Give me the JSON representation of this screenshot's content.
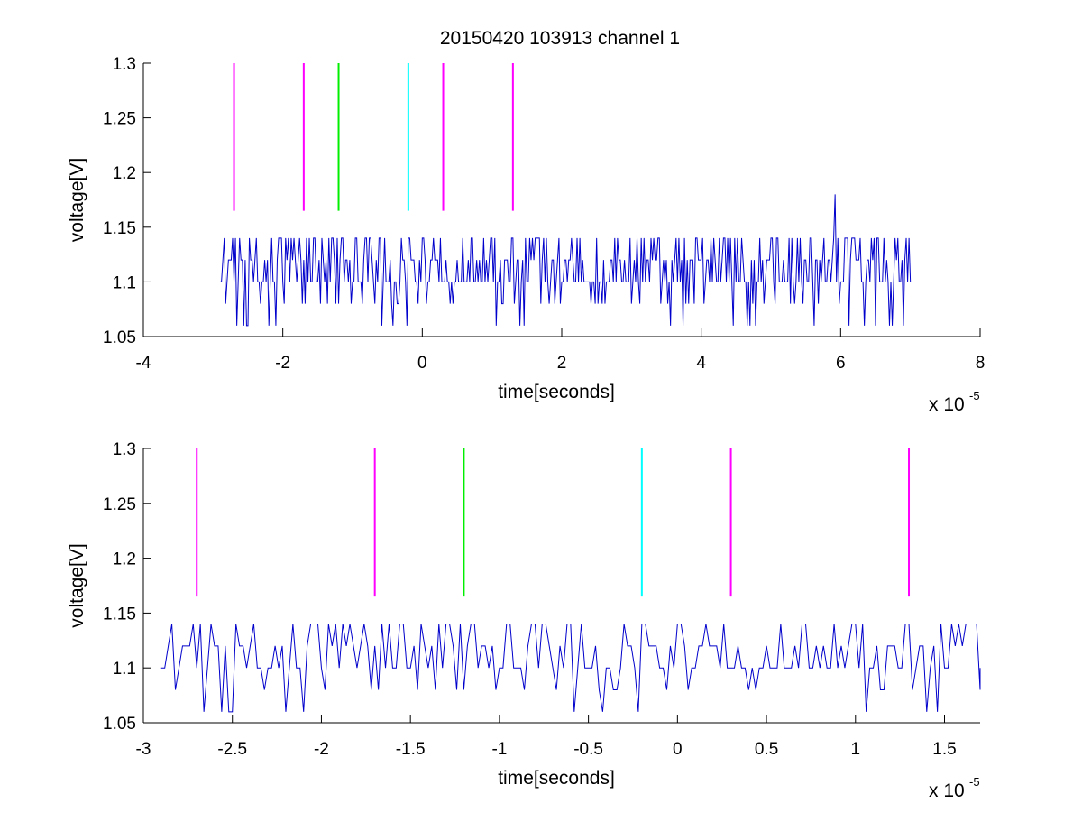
{
  "figure": {
    "title": "20150420 103913 channel 1"
  },
  "colors": {
    "signal": "#0000cc",
    "marker_magenta": "#ff00ff",
    "marker_green": "#00ee00",
    "marker_cyan": "#00ffff",
    "axes": "#000000"
  },
  "chart_data": [
    {
      "type": "line",
      "title": "20150420 103913 channel 1",
      "xlabel": "time[seconds]",
      "ylabel": "voltage[V]",
      "x_exponent": {
        "base": "x 10",
        "power": "-5"
      },
      "xlim": [
        -4,
        8
      ],
      "ylim": [
        1.05,
        1.3
      ],
      "x_ticks": [
        -4,
        -2,
        0,
        2,
        4,
        6,
        8
      ],
      "x_tick_labels": [
        "-4",
        "-2",
        "0",
        "2",
        "4",
        "6",
        "8"
      ],
      "y_ticks": [
        1.05,
        1.1,
        1.15,
        1.2,
        1.25,
        1.3
      ],
      "y_tick_labels": [
        "1.05",
        "1.1",
        "1.15",
        "1.2",
        "1.25",
        "1.3"
      ],
      "grid": false,
      "signal": {
        "x_start": -2.9,
        "x_end": 7.0,
        "step": 0.02,
        "levels": [
          1.06,
          1.08,
          1.1,
          1.12,
          1.14
        ],
        "baseline": 1.1,
        "spike": {
          "x": 5.92,
          "y": 1.18
        }
      },
      "markers": [
        {
          "x": -2.7,
          "y_from": 1.165,
          "y_to": 1.3,
          "color": "magenta"
        },
        {
          "x": -1.7,
          "y_from": 1.165,
          "y_to": 1.3,
          "color": "magenta"
        },
        {
          "x": -1.2,
          "y_from": 1.165,
          "y_to": 1.3,
          "color": "green"
        },
        {
          "x": -0.2,
          "y_from": 1.165,
          "y_to": 1.3,
          "color": "cyan"
        },
        {
          "x": 0.3,
          "y_from": 1.165,
          "y_to": 1.3,
          "color": "magenta"
        },
        {
          "x": 1.3,
          "y_from": 1.165,
          "y_to": 1.3,
          "color": "magenta"
        }
      ]
    },
    {
      "type": "line",
      "title": "",
      "xlabel": "time[seconds]",
      "ylabel": "voltage[V]",
      "x_exponent": {
        "base": "x 10",
        "power": "-5"
      },
      "xlim": [
        -3.0,
        1.7
      ],
      "ylim": [
        1.05,
        1.3
      ],
      "x_ticks": [
        -3,
        -2.5,
        -2,
        -1.5,
        -1,
        -0.5,
        0,
        0.5,
        1,
        1.5
      ],
      "x_tick_labels": [
        "-3",
        "-2.5",
        "-2",
        "-1.5",
        "-1",
        "-0.5",
        "0",
        "0.5",
        "1",
        "1.5"
      ],
      "y_ticks": [
        1.05,
        1.1,
        1.15,
        1.2,
        1.25,
        1.3
      ],
      "y_tick_labels": [
        "1.05",
        "1.1",
        "1.15",
        "1.2",
        "1.25",
        "1.3"
      ],
      "grid": false,
      "signal": {
        "x_start": -2.9,
        "x_end": 1.7,
        "step": 0.02,
        "levels": [
          1.06,
          1.08,
          1.1,
          1.12,
          1.14
        ],
        "baseline": 1.1
      },
      "markers": [
        {
          "x": -2.7,
          "y_from": 1.165,
          "y_to": 1.3,
          "color": "magenta"
        },
        {
          "x": -1.7,
          "y_from": 1.165,
          "y_to": 1.3,
          "color": "magenta"
        },
        {
          "x": -1.2,
          "y_from": 1.165,
          "y_to": 1.3,
          "color": "green"
        },
        {
          "x": -0.2,
          "y_from": 1.165,
          "y_to": 1.3,
          "color": "cyan"
        },
        {
          "x": 0.3,
          "y_from": 1.165,
          "y_to": 1.3,
          "color": "magenta"
        },
        {
          "x": 1.3,
          "y_from": 1.165,
          "y_to": 1.3,
          "color": "magenta"
        }
      ]
    }
  ]
}
